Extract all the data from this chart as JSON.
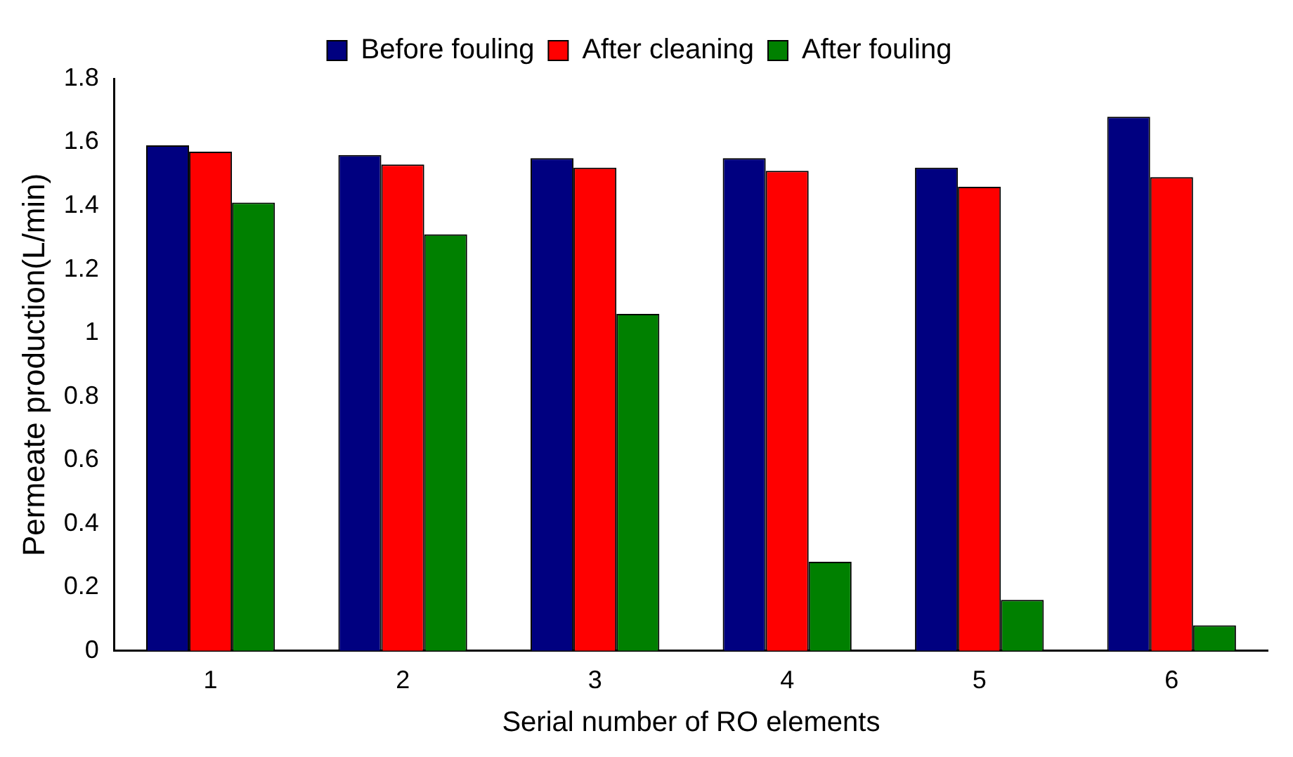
{
  "chart_data": {
    "type": "bar",
    "xlabel": "Serial number of RO elements",
    "ylabel": "Permeate production(L/min)",
    "categories": [
      "1",
      "2",
      "3",
      "4",
      "5",
      "6"
    ],
    "series": [
      {
        "name": "Before fouling",
        "color": "#000080",
        "values": [
          1.59,
          1.56,
          1.55,
          1.55,
          1.52,
          1.68
        ]
      },
      {
        "name": "After cleaning",
        "color": "#ff0000",
        "values": [
          1.57,
          1.53,
          1.52,
          1.51,
          1.46,
          1.49
        ]
      },
      {
        "name": "After fouling",
        "color": "#008000",
        "values": [
          1.41,
          1.31,
          1.06,
          0.28,
          0.16,
          0.08
        ]
      }
    ],
    "ylim": [
      0,
      1.8
    ],
    "yticks": [
      0,
      0.2,
      0.4,
      0.6,
      0.8,
      1,
      1.2,
      1.4,
      1.6,
      1.8
    ],
    "grid": false,
    "legend": "top"
  }
}
